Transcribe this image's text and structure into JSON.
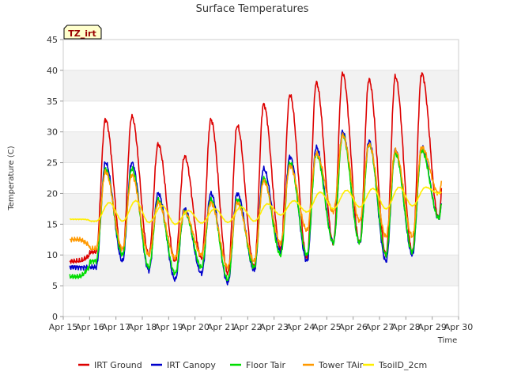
{
  "chart_data": {
    "type": "line",
    "title": "Surface Temperatures",
    "badge": "TZ_irt",
    "xlabel": "Time",
    "ylabel": "Temperature (C)",
    "xlim": [
      15,
      30
    ],
    "ylim": [
      0,
      45
    ],
    "x_ticks": [
      15,
      16,
      17,
      18,
      19,
      20,
      21,
      22,
      23,
      24,
      25,
      26,
      27,
      28,
      29,
      30
    ],
    "x_tick_labels": [
      "Apr 15",
      "Apr 16",
      "Apr 17",
      "Apr 18",
      "Apr 19",
      "Apr 20",
      "Apr 21",
      "Apr 22",
      "Apr 23",
      "Apr 24",
      "Apr 25",
      "Apr 26",
      "Apr 27",
      "Apr 28",
      "Apr 29",
      "Apr 30"
    ],
    "y_ticks": [
      0,
      5,
      10,
      15,
      20,
      25,
      30,
      35,
      40,
      45
    ],
    "y_tick_labels": [
      "0",
      "5",
      "10",
      "15",
      "20",
      "25",
      "30",
      "35",
      "40",
      "45"
    ],
    "grid": "horizontal bands",
    "legend_position": "bottom",
    "days": [
      15,
      16,
      17,
      18,
      19,
      20,
      21,
      22,
      23,
      24,
      25,
      26,
      27,
      28,
      29
    ],
    "series": [
      {
        "name": "IRT Ground",
        "color": "#dd0000",
        "max": [
          null,
          32,
          32.5,
          28,
          26,
          32,
          31,
          34.5,
          36,
          38,
          39.5,
          38.5,
          39,
          39.5,
          42
        ],
        "min": [
          9,
          10.5,
          10,
          10,
          9,
          9.5,
          7,
          8,
          11,
          9.5,
          12,
          12,
          10,
          10.5,
          16
        ]
      },
      {
        "name": "IRT Canopy",
        "color": "#0000cc",
        "max": [
          null,
          25,
          25,
          20,
          17.5,
          20,
          20,
          24,
          26,
          27.5,
          30,
          28.5,
          27,
          27.5,
          30
        ],
        "min": [
          8,
          8,
          9,
          7.5,
          6,
          7,
          5.5,
          7.5,
          10.5,
          9,
          12,
          12,
          9,
          10,
          16
        ]
      },
      {
        "name": "Floor Tair",
        "color": "#00dd00",
        "max": [
          null,
          24,
          24,
          19,
          17,
          19,
          19,
          22.5,
          25,
          26.5,
          29.5,
          28,
          26.5,
          27,
          29.5
        ],
        "min": [
          6.5,
          9,
          10,
          8,
          7,
          8,
          6,
          8,
          10,
          10,
          12,
          12,
          10,
          10.5,
          16
        ]
      },
      {
        "name": "Tower TAir",
        "color": "#ff9900",
        "max": [
          null,
          23.5,
          23,
          18.5,
          17,
          18.5,
          18.5,
          22,
          24.5,
          26.5,
          29.5,
          28,
          27,
          27.5,
          30
        ],
        "min": [
          12.5,
          11,
          11,
          10,
          9.5,
          10,
          8,
          9,
          12,
          14,
          17,
          15.5,
          13,
          13,
          20
        ]
      },
      {
        "name": "TsoilD_2cm",
        "color": "#ffee00",
        "max": [
          null,
          18.5,
          18.8,
          18,
          17.2,
          17.5,
          17.8,
          18.3,
          18.8,
          20.2,
          20.5,
          20.8,
          21,
          21,
          22
        ],
        "min": [
          15.8,
          15.5,
          15.5,
          15.3,
          15,
          15.2,
          15.3,
          15.5,
          16.5,
          17,
          17.5,
          17.8,
          17.5,
          18,
          20
        ]
      }
    ]
  }
}
